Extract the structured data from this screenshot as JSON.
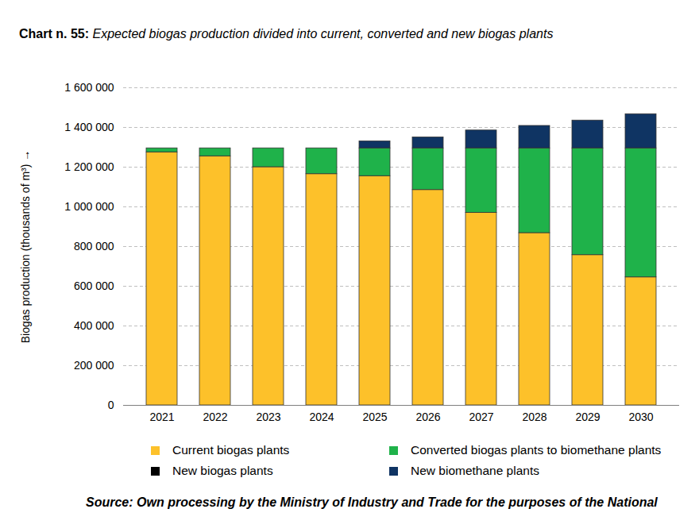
{
  "chart_data": {
    "type": "bar",
    "title": "Chart n. 55: Expected biogas production divided into current, converted and new biogas plants",
    "source": "Source: Own processing by the Ministry of Industry and Trade for the purposes of the National",
    "y_label": "Biogas production (thousands of m³)",
    "categories": [
      "2021",
      "2022",
      "2023",
      "2024",
      "2025",
      "2026",
      "2027",
      "2028",
      "2029",
      "2030"
    ],
    "stacked": true,
    "grid": true,
    "legend": "bottom",
    "ylim": [
      0,
      1600000
    ],
    "yticks": [
      0,
      {
        "value": 200000,
        "label": "200 000"
      },
      {
        "value": 400000,
        "label": "400 000"
      },
      {
        "value": 600000,
        "label": "600 000"
      },
      {
        "value": 800000,
        "label": "800 000"
      },
      {
        "value": 1000000,
        "label": "1 000 000"
      },
      {
        "value": 1200000,
        "label": "1 200 000"
      },
      {
        "value": 1400000,
        "label": "1 400 000"
      },
      {
        "value": 1600000,
        "label": "1 600 000"
      }
    ],
    "series": [
      {
        "name": "Current biogas plants",
        "color": "#fdc12a",
        "values": [
          1275000,
          1255000,
          1200000,
          1165000,
          1155000,
          1085000,
          970000,
          868000,
          757000,
          645000
        ]
      },
      {
        "name": "Converted biogas plants to biomethane plants",
        "color": "#1fb24a",
        "values": [
          20000,
          40000,
          95000,
          130000,
          140000,
          210000,
          325000,
          427000,
          538000,
          650000
        ]
      },
      {
        "name": "New biogas plants",
        "color": "#000000",
        "values": [
          0,
          0,
          0,
          0,
          0,
          0,
          0,
          0,
          0,
          0
        ]
      },
      {
        "name": "New biomethane plants",
        "color": "#0f3463",
        "values": [
          0,
          0,
          0,
          0,
          35000,
          55000,
          90000,
          113000,
          140000,
          172000
        ]
      }
    ]
  }
}
